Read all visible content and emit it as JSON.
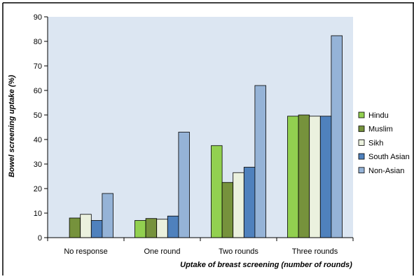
{
  "chart_data": {
    "type": "bar",
    "categories": [
      "No response",
      "One round",
      "Two rounds",
      "Three rounds"
    ],
    "series": [
      {
        "name": "Hindu",
        "values": [
          0,
          7,
          37.5,
          49.5
        ],
        "color": "#92d050"
      },
      {
        "name": "Muslim",
        "values": [
          8,
          7.8,
          22.5,
          50
        ],
        "color": "#76923c"
      },
      {
        "name": "Sikh",
        "values": [
          9.5,
          7.5,
          26.5,
          49.5
        ],
        "color": "#ebf1de"
      },
      {
        "name": "South Asian",
        "values": [
          7,
          8.8,
          28.7,
          49.5
        ],
        "color": "#4f81bd"
      },
      {
        "name": "Non-Asian",
        "values": [
          18,
          43,
          62,
          82.3
        ],
        "color": "#95b3d7"
      }
    ],
    "title": "",
    "xlabel": "Uptake of breast screening (number of rounds)",
    "ylabel": "Bowel screening uptake (%)",
    "ylim": [
      0,
      90
    ],
    "yticks": [
      0,
      10,
      20,
      30,
      40,
      50,
      60,
      70,
      80,
      90
    ],
    "grid": false,
    "legend": "right",
    "plot_background": "#dce6f2"
  }
}
